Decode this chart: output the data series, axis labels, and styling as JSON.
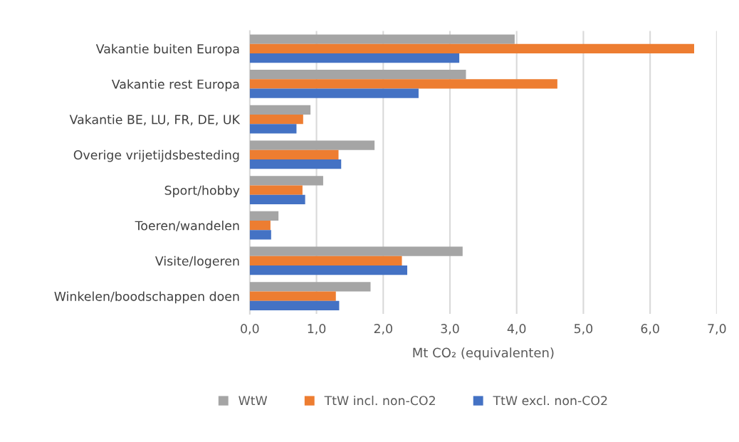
{
  "chart_data": {
    "type": "bar",
    "orientation": "horizontal",
    "categories": [
      "Vakantie buiten Europa",
      "Vakantie rest Europa",
      "Vakantie BE, LU, FR, DE, UK",
      "Overige vrijetijdsbesteding",
      "Sport/hobby",
      "Toeren/wandelen",
      "Visite/logeren",
      "Winkelen/boodschappen doen"
    ],
    "series": [
      {
        "name": "WtW",
        "color": "#a5a5a5",
        "values": [
          3.97,
          3.24,
          0.91,
          1.87,
          1.1,
          0.43,
          3.19,
          1.81
        ]
      },
      {
        "name": "TtW incl. non-CO2",
        "color": "#ed7d31",
        "values": [
          6.66,
          4.61,
          0.8,
          1.33,
          0.79,
          0.31,
          2.28,
          1.29
        ]
      },
      {
        "name": "TtW excl. non-CO2",
        "color": "#4472c4",
        "values": [
          3.14,
          2.53,
          0.7,
          1.37,
          0.83,
          0.32,
          2.36,
          1.34
        ]
      }
    ],
    "xlabel": "Mt CO₂ (equivalenten)",
    "xlim": [
      0,
      7
    ],
    "xticks": [
      {
        "value": 0,
        "label": "0,0"
      },
      {
        "value": 1,
        "label": "1,0"
      },
      {
        "value": 2,
        "label": "2,0"
      },
      {
        "value": 3,
        "label": "3,0"
      },
      {
        "value": 4,
        "label": "4,0"
      },
      {
        "value": 5,
        "label": "5,0"
      },
      {
        "value": 6,
        "label": "6,0"
      },
      {
        "value": 7,
        "label": "7,0"
      }
    ],
    "grid": "x",
    "legend": "bottom"
  }
}
